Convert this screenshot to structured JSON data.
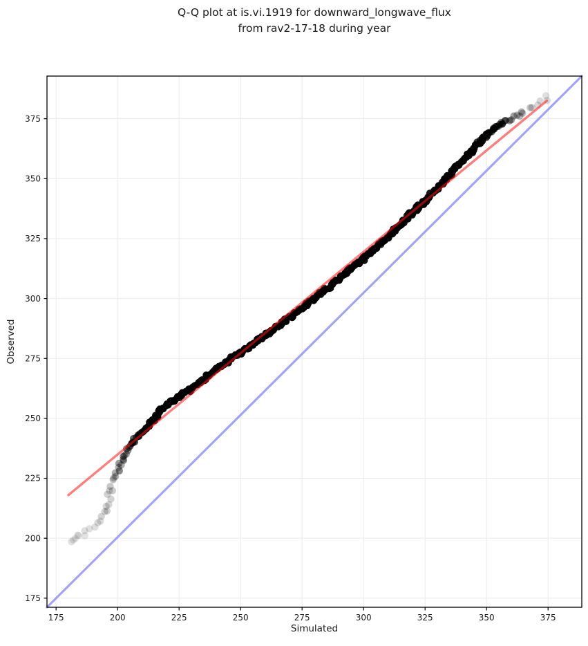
{
  "title": {
    "line1": "Q-Q plot at is.vi.1919 for downward_longwave_flux",
    "line2": "from rav2-17-18 during year"
  },
  "chart_data": {
    "type": "scatter",
    "subtype": "qq-plot",
    "title": "Q-Q plot at is.vi.1919 for downward_longwave_flux from rav2-17-18 during year",
    "xlabel": "Simulated",
    "ylabel": "Observed",
    "xlim": [
      171.3,
      388.7
    ],
    "ylim": [
      171.2,
      392.8
    ],
    "xticks": [
      175,
      200,
      225,
      250,
      275,
      300,
      325,
      350,
      375
    ],
    "yticks": [
      175,
      200,
      225,
      250,
      275,
      300,
      325,
      350,
      375
    ],
    "grid": true,
    "grid_color": "#ececec",
    "spine_color": "#000000",
    "background": "#ffffff",
    "identity_line": {
      "name": "one-to-one reference line",
      "color": "#8c8cf0",
      "opacity": 0.8,
      "width": 3.2
    },
    "fit_line": {
      "name": "fitted quantile line",
      "x": [
        180.0,
        374.5
      ],
      "y": [
        218.0,
        382.5
      ],
      "color": "#ff1414",
      "opacity": 0.55,
      "width": 3.4
    },
    "points_style": {
      "color": "#000000",
      "radius": 5.2,
      "note": "thousands of low-alpha points; third value of each triplet is local darkness 0-1"
    },
    "qq_points": [
      [
        181.0,
        198.8,
        0.1
      ],
      [
        181.6,
        199.2,
        0.1
      ],
      [
        182.4,
        199.8,
        0.11
      ],
      [
        183.4,
        200.4,
        0.11
      ],
      [
        184.6,
        200.9,
        0.1
      ],
      [
        186.0,
        201.5,
        0.1
      ],
      [
        187.5,
        202.3,
        0.11
      ],
      [
        189.0,
        203.3,
        0.12
      ],
      [
        190.3,
        204.5,
        0.13
      ],
      [
        191.5,
        206.2,
        0.13
      ],
      [
        192.6,
        207.6,
        0.14
      ],
      [
        193.8,
        208.9,
        0.15
      ],
      [
        194.7,
        211.0,
        0.16
      ],
      [
        195.6,
        213.5,
        0.17
      ],
      [
        196.4,
        216.2,
        0.18
      ],
      [
        197.1,
        219.0,
        0.19
      ],
      [
        197.8,
        221.5,
        0.21
      ],
      [
        198.6,
        223.6,
        0.23
      ],
      [
        199.3,
        226.0,
        0.26
      ],
      [
        200.2,
        228.6,
        0.3
      ],
      [
        201.3,
        231.2,
        0.34
      ],
      [
        202.3,
        234.0,
        0.38
      ],
      [
        203.4,
        236.3,
        0.44
      ],
      [
        204.8,
        238.2,
        0.52
      ],
      [
        206.3,
        240.0,
        0.62
      ],
      [
        208.0,
        242.0,
        0.72
      ],
      [
        209.8,
        243.8,
        0.8
      ],
      [
        211.5,
        245.8,
        0.88
      ],
      [
        213.2,
        247.8,
        0.93
      ],
      [
        215.0,
        250.0,
        0.95
      ],
      [
        216.8,
        252.2,
        0.96
      ],
      [
        218.6,
        254.2,
        0.96
      ],
      [
        220.5,
        255.8,
        0.96
      ],
      [
        222.8,
        257.5,
        0.96
      ],
      [
        225.2,
        259.3,
        0.96
      ],
      [
        228.0,
        261.2,
        0.96
      ],
      [
        231.0,
        263.2,
        0.96
      ],
      [
        234.0,
        265.3,
        0.96
      ],
      [
        237.0,
        267.8,
        0.96
      ],
      [
        240.0,
        270.2,
        0.96
      ],
      [
        243.3,
        272.6,
        0.96
      ],
      [
        246.6,
        275.0,
        0.96
      ],
      [
        250.0,
        277.4,
        0.96
      ],
      [
        253.4,
        279.9,
        0.96
      ],
      [
        256.8,
        282.2,
        0.96
      ],
      [
        260.2,
        284.7,
        0.96
      ],
      [
        263.6,
        287.2,
        0.96
      ],
      [
        267.0,
        289.8,
        0.96
      ],
      [
        270.4,
        292.3,
        0.96
      ],
      [
        273.8,
        294.9,
        0.96
      ],
      [
        277.2,
        297.7,
        0.96
      ],
      [
        280.6,
        300.5,
        0.96
      ],
      [
        284.0,
        303.2,
        0.96
      ],
      [
        287.4,
        306.0,
        0.96
      ],
      [
        290.8,
        308.9,
        0.96
      ],
      [
        294.2,
        311.8,
        0.96
      ],
      [
        297.6,
        314.7,
        0.96
      ],
      [
        301.0,
        317.7,
        0.96
      ],
      [
        304.4,
        320.7,
        0.96
      ],
      [
        307.8,
        323.9,
        0.96
      ],
      [
        311.2,
        327.1,
        0.96
      ],
      [
        314.4,
        330.3,
        0.96
      ],
      [
        317.4,
        333.4,
        0.96
      ],
      [
        320.4,
        336.4,
        0.96
      ],
      [
        323.4,
        339.4,
        0.96
      ],
      [
        326.4,
        342.4,
        0.96
      ],
      [
        329.4,
        345.5,
        0.96
      ],
      [
        332.4,
        348.7,
        0.96
      ],
      [
        335.4,
        352.0,
        0.96
      ],
      [
        338.4,
        355.3,
        0.96
      ],
      [
        341.4,
        358.7,
        0.95
      ],
      [
        344.2,
        362.0,
        0.93
      ],
      [
        346.8,
        364.9,
        0.9
      ],
      [
        349.2,
        367.5,
        0.85
      ],
      [
        351.4,
        369.6,
        0.78
      ],
      [
        353.4,
        371.2,
        0.68
      ],
      [
        355.2,
        372.4,
        0.58
      ],
      [
        357.2,
        373.6,
        0.48
      ],
      [
        359.2,
        374.8,
        0.4
      ],
      [
        361.2,
        375.9,
        0.34
      ],
      [
        363.2,
        376.9,
        0.29
      ],
      [
        365.2,
        377.8,
        0.25
      ],
      [
        367.2,
        378.7,
        0.22
      ],
      [
        369.2,
        379.7,
        0.19
      ],
      [
        371.2,
        380.8,
        0.16
      ],
      [
        372.6,
        382.0,
        0.14
      ],
      [
        373.8,
        383.4,
        0.13
      ],
      [
        374.6,
        384.6,
        0.12
      ],
      [
        375.2,
        385.4,
        0.11
      ]
    ]
  }
}
